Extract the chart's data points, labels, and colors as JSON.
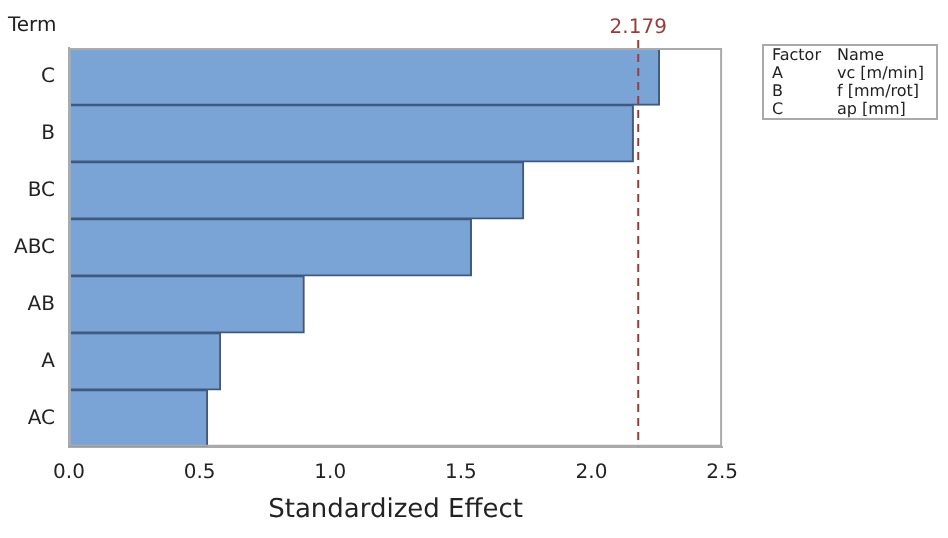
{
  "chart_data": {
    "type": "bar",
    "orientation": "horizontal",
    "ylabel": "Term",
    "xlabel": "Standardized Effect",
    "categories": [
      "C",
      "B",
      "BC",
      "ABC",
      "AB",
      "A",
      "AC"
    ],
    "values": [
      2.26,
      2.16,
      1.74,
      1.54,
      0.9,
      0.58,
      0.53
    ],
    "color": "#7aa3d6",
    "xlim": [
      0,
      2.5
    ],
    "xticks": [
      {
        "value": 0,
        "label": "0.0"
      },
      0.5,
      {
        "value": 1,
        "label": "1.0"
      },
      1.5,
      {
        "value": 2,
        "label": "2.0"
      },
      2.5
    ],
    "ref_lines": [
      {
        "axis": "x",
        "value": 2.179,
        "label": "2.179",
        "color": "#9b3b3b",
        "line_style": "dashed"
      }
    ],
    "annotations": [
      "Factor",
      "Name",
      "A",
      "vc [m/min]",
      "B",
      "f [mm/rot]",
      "C",
      "ap [mm]"
    ],
    "grid": false,
    "legend": false
  }
}
